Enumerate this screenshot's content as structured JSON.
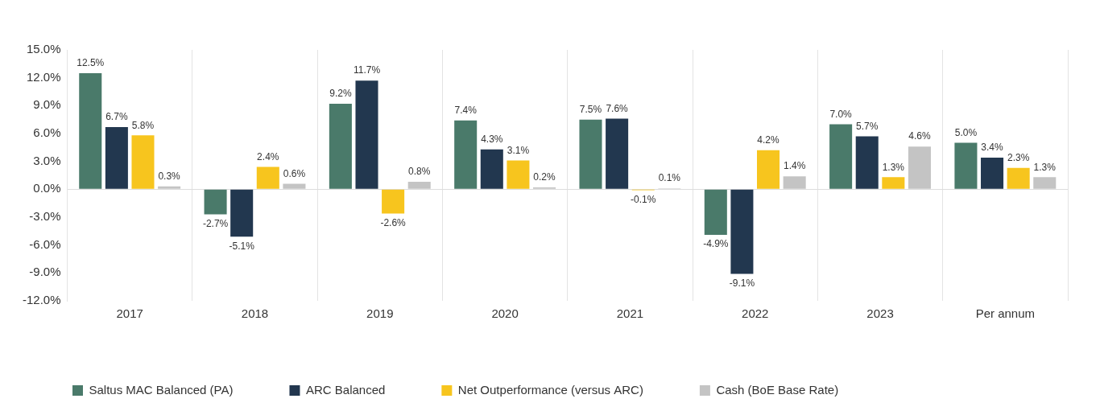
{
  "chart_data": {
    "type": "bar",
    "categories": [
      "2017",
      "2018",
      "2019",
      "2020",
      "2021",
      "2022",
      "2023",
      "Per annum"
    ],
    "series": [
      {
        "name": "Saltus MAC Balanced (PA)",
        "color": "#4a7a6a",
        "values": [
          12.5,
          -2.7,
          9.2,
          7.4,
          7.5,
          -4.9,
          7.0,
          5.0
        ],
        "value_labels": [
          "12.5%",
          "-2.7%",
          "9.2%",
          "7.4%",
          "7.5%",
          "-4.9%",
          "7.0%",
          "5.0%"
        ]
      },
      {
        "name": "ARC Balanced",
        "color": "#22374f",
        "values": [
          6.7,
          -5.1,
          11.7,
          4.3,
          7.6,
          -9.1,
          5.7,
          3.4
        ],
        "value_labels": [
          "6.7%",
          "-5.1%",
          "11.7%",
          "4.3%",
          "7.6%",
          "-9.1%",
          "5.7%",
          "3.4%"
        ]
      },
      {
        "name": "Net Outperformance (versus ARC)",
        "color": "#f7c51e",
        "values": [
          5.8,
          2.4,
          -2.6,
          3.1,
          -0.1,
          4.2,
          1.3,
          2.3
        ],
        "value_labels": [
          "5.8%",
          "2.4%",
          "-2.6%",
          "3.1%",
          "-0.1%",
          "4.2%",
          "1.3%",
          "2.3%"
        ]
      },
      {
        "name": "Cash (BoE Base Rate)",
        "color": "#c4c4c4",
        "values": [
          0.3,
          0.6,
          0.8,
          0.2,
          0.1,
          1.4,
          4.6,
          1.3
        ],
        "value_labels": [
          "0.3%",
          "0.6%",
          "0.8%",
          "0.2%",
          "0.1%",
          "1.4%",
          "4.6%",
          "1.3%"
        ]
      }
    ],
    "ylim": [
      -12,
      15
    ],
    "yticks": [
      {
        "value": -12,
        "label": "-12.0%"
      },
      {
        "value": -9,
        "label": "-9.0%"
      },
      {
        "value": -6,
        "label": "-6.0%"
      },
      {
        "value": -3,
        "label": "-3.0%"
      },
      {
        "value": 0,
        "label": "0.0%"
      },
      {
        "value": 3,
        "label": "3.0%"
      },
      {
        "value": 6,
        "label": "6.0%"
      },
      {
        "value": 9,
        "label": "9.0%"
      },
      {
        "value": 12,
        "label": "12.0%"
      },
      {
        "value": 15,
        "label": "15.0%"
      }
    ],
    "grid": true,
    "legend": "bottom",
    "data_labels": true
  }
}
